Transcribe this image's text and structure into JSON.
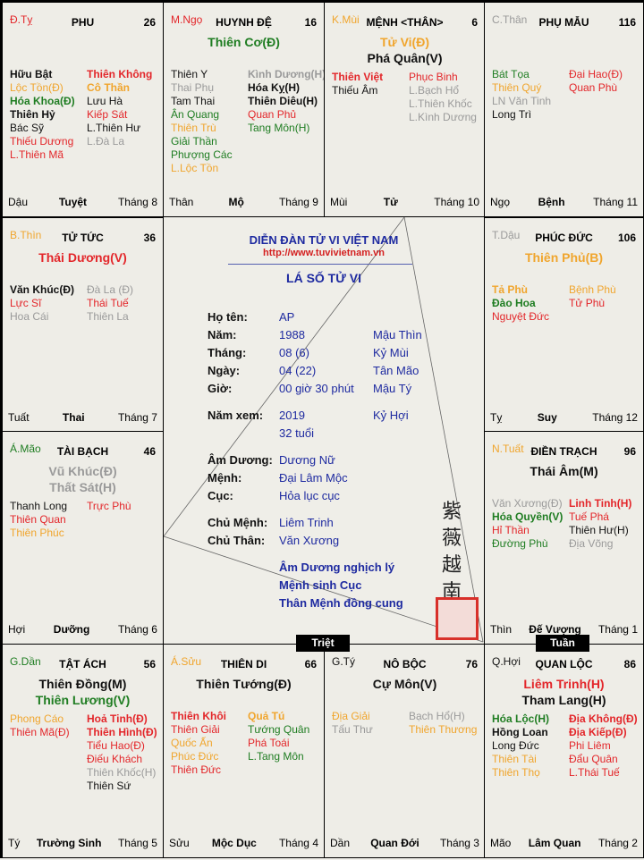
{
  "colors": {
    "red": "#e3262a",
    "orange": "#f0a52d",
    "green": "#1f7d22",
    "black": "#111111",
    "gray": "#9a9a9a",
    "blue": "#1e2aa0"
  },
  "palaces": [
    {
      "can": {
        "t": "Đ.Tỵ",
        "c": "r"
      },
      "name": "PHU",
      "num": "26",
      "mains": [],
      "left": [
        {
          "t": "Hữu Bật",
          "c": "k",
          "b": 1
        },
        {
          "t": "Lộc Tồn(Đ)",
          "c": "o"
        },
        {
          "t": "Hóa Khoa(Đ)",
          "c": "g",
          "b": 1
        },
        {
          "t": "Thiên Hỷ",
          "c": "k",
          "b": 1
        },
        {
          "t": "Bác Sỹ",
          "c": "k"
        },
        {
          "t": "Thiếu Dương",
          "c": "r"
        },
        {
          "t": "L.Thiên Mã",
          "c": "r"
        }
      ],
      "right": [
        {
          "t": "Thiên Không",
          "c": "r",
          "b": 1
        },
        {
          "t": "Cô Thần",
          "c": "o",
          "b": 1
        },
        {
          "t": "Lưu Hà",
          "c": "k"
        },
        {
          "t": "Kiếp Sát",
          "c": "r"
        },
        {
          "t": "L.Thiên Hư",
          "c": "k"
        },
        {
          "t": "L.Đà La",
          "c": "y"
        }
      ],
      "foot": [
        "Dậu",
        "Tuyệt",
        "Tháng 8"
      ]
    },
    {
      "can": {
        "t": "M.Ngọ",
        "c": "r"
      },
      "name": "HUYNH ĐỆ",
      "num": "16",
      "mains": [
        {
          "t": "Thiên Cơ(Đ)",
          "c": "g"
        }
      ],
      "left": [
        {
          "t": "Thiên Y",
          "c": "k"
        },
        {
          "t": "Thai Phụ",
          "c": "y"
        },
        {
          "t": "Tam Thai",
          "c": "k"
        },
        {
          "t": "Ân Quang",
          "c": "g"
        },
        {
          "t": "Thiên Trù",
          "c": "o"
        },
        {
          "t": "Giải Thần",
          "c": "g"
        },
        {
          "t": "Phượng Các",
          "c": "g"
        },
        {
          "t": "L.Lộc Tồn",
          "c": "o"
        }
      ],
      "right": [
        {
          "t": "Kình Dương(H)",
          "c": "y",
          "b": 1
        },
        {
          "t": "Hóa Kỵ(H)",
          "c": "k",
          "b": 1
        },
        {
          "t": "Thiên Diêu(H)",
          "c": "k",
          "b": 1
        },
        {
          "t": "Quan Phủ",
          "c": "r"
        },
        {
          "t": "Tang Môn(H)",
          "c": "g"
        }
      ],
      "foot": [
        "Thân",
        "Mộ",
        "Tháng 9"
      ]
    },
    {
      "can": {
        "t": "K.Mùi",
        "c": "o"
      },
      "name": "MỆNH <THÂN>",
      "num": "6",
      "mains": [
        {
          "t": "Tử Vi(Đ)",
          "c": "o"
        },
        {
          "t": "Phá Quân(V)",
          "c": "k"
        }
      ],
      "left": [
        {
          "t": "Thiên Việt",
          "c": "r",
          "b": 1
        },
        {
          "t": "Thiếu Âm",
          "c": "k"
        }
      ],
      "right": [
        {
          "t": "Phục Binh",
          "c": "r"
        },
        {
          "t": "L.Bạch Hổ",
          "c": "y"
        },
        {
          "t": "L.Thiên Khốc",
          "c": "y"
        },
        {
          "t": "L.Kình Dương",
          "c": "y"
        }
      ],
      "foot": [
        "Mùi",
        "Tử",
        "Tháng 10"
      ]
    },
    {
      "can": {
        "t": "C.Thân",
        "c": "y"
      },
      "name": "PHỤ MẪU",
      "num": "116",
      "mains": [],
      "left": [
        {
          "t": "Bát Tọa",
          "c": "g"
        },
        {
          "t": "Thiên Quý",
          "c": "o"
        },
        {
          "t": "LN Văn Tinh",
          "c": "y"
        },
        {
          "t": "Long Trì",
          "c": "k"
        }
      ],
      "right": [
        {
          "t": "Đại Hao(Đ)",
          "c": "r"
        },
        {
          "t": "Quan Phù",
          "c": "r"
        }
      ],
      "foot": [
        "Ngọ",
        "Bệnh",
        "Tháng 11"
      ]
    },
    {
      "can": {
        "t": "B.Thìn",
        "c": "o"
      },
      "name": "TỬ TỨC",
      "num": "36",
      "mains": [
        {
          "t": "Thái Dương(V)",
          "c": "r"
        }
      ],
      "left": [
        {
          "t": "Văn Khúc(Đ)",
          "c": "k",
          "b": 1
        },
        {
          "t": "Lực Sĩ",
          "c": "r"
        },
        {
          "t": "Hoa Cái",
          "c": "y"
        }
      ],
      "right": [
        {
          "t": "Đà La (Đ)",
          "c": "y"
        },
        {
          "t": "Thái Tuế",
          "c": "r"
        },
        {
          "t": "Thiên La",
          "c": "y"
        }
      ],
      "foot": [
        "Tuất",
        "Thai",
        "Tháng 7"
      ]
    },
    {
      "can": {
        "t": "T.Dậu",
        "c": "y"
      },
      "name": "PHÚC ĐỨC",
      "num": "106",
      "mains": [
        {
          "t": "Thiên Phủ(B)",
          "c": "o"
        }
      ],
      "left": [
        {
          "t": "Tả Phù",
          "c": "o",
          "b": 1
        },
        {
          "t": "Đào Hoa",
          "c": "g",
          "b": 1
        },
        {
          "t": "Nguyệt Đức",
          "c": "r"
        }
      ],
      "right": [
        {
          "t": "Bệnh Phù",
          "c": "o"
        },
        {
          "t": "Tử Phù",
          "c": "r"
        }
      ],
      "foot": [
        "Tỵ",
        "Suy",
        "Tháng 12"
      ]
    },
    {
      "can": {
        "t": "Á.Mão",
        "c": "g"
      },
      "name": "TÀI BẠCH",
      "num": "46",
      "mains": [
        {
          "t": "Vũ Khúc(Đ)",
          "c": "y"
        },
        {
          "t": "Thất Sát(H)",
          "c": "y"
        }
      ],
      "left": [
        {
          "t": "Thanh Long",
          "c": "k"
        },
        {
          "t": "Thiên Quan",
          "c": "r"
        },
        {
          "t": "Thiên Phúc",
          "c": "o"
        }
      ],
      "right": [
        {
          "t": "Trực Phù",
          "c": "r"
        }
      ],
      "foot": [
        "Hợi",
        "Dưỡng",
        "Tháng 6"
      ]
    },
    {
      "can": {
        "t": "N.Tuất",
        "c": "o"
      },
      "name": "ĐIỀN TRẠCH",
      "num": "96",
      "mains": [
        {
          "t": "Thái Âm(M)",
          "c": "k"
        }
      ],
      "left": [
        {
          "t": "Văn Xương(Đ)",
          "c": "y"
        },
        {
          "t": "Hóa Quyền(V)",
          "c": "g",
          "b": 1
        },
        {
          "t": "Hỉ Thần",
          "c": "r"
        },
        {
          "t": "Đường Phù",
          "c": "g"
        }
      ],
      "right": [
        {
          "t": "Linh Tinh(H)",
          "c": "r",
          "b": 1
        },
        {
          "t": "Tuế Phá",
          "c": "r"
        },
        {
          "t": "Thiên Hư(H)",
          "c": "k"
        },
        {
          "t": "Địa Võng",
          "c": "y"
        }
      ],
      "foot": [
        "Thìn",
        "Đế Vượng",
        "Tháng 1"
      ]
    },
    {
      "can": {
        "t": "G.Dần",
        "c": "g"
      },
      "name": "TẬT ÁCH",
      "num": "56",
      "mains": [
        {
          "t": "Thiên Đồng(M)",
          "c": "k"
        },
        {
          "t": "Thiên Lương(V)",
          "c": "g"
        }
      ],
      "left": [
        {
          "t": "Phong Cáo",
          "c": "o"
        },
        {
          "t": "Thiên Mã(Đ)",
          "c": "r"
        }
      ],
      "right": [
        {
          "t": "Hoả Tinh(Đ)",
          "c": "r",
          "b": 1
        },
        {
          "t": "Thiên Hình(Đ)",
          "c": "r",
          "b": 1
        },
        {
          "t": "Tiểu Hao(Đ)",
          "c": "r"
        },
        {
          "t": "Điếu Khách",
          "c": "r"
        },
        {
          "t": "Thiên Khốc(H)",
          "c": "y"
        },
        {
          "t": "Thiên Sứ",
          "c": "k"
        }
      ],
      "foot": [
        "Tý",
        "Trường Sinh",
        "Tháng 5"
      ]
    },
    {
      "can": {
        "t": "Á.Sửu",
        "c": "o"
      },
      "name": "THIÊN DI",
      "num": "66",
      "mains": [
        {
          "t": "Thiên Tướng(Đ)",
          "c": "k"
        }
      ],
      "left": [
        {
          "t": "Thiên Khôi",
          "c": "r",
          "b": 1
        },
        {
          "t": "Thiên Giải",
          "c": "r"
        },
        {
          "t": "Quốc Ấn",
          "c": "o"
        },
        {
          "t": "Phúc Đức",
          "c": "o"
        },
        {
          "t": "Thiên Đức",
          "c": "r"
        }
      ],
      "right": [
        {
          "t": "Quả Tú",
          "c": "o",
          "b": 1
        },
        {
          "t": "Tướng Quân",
          "c": "g"
        },
        {
          "t": "Phá Toái",
          "c": "r"
        },
        {
          "t": "L.Tang Môn",
          "c": "g"
        }
      ],
      "foot": [
        "Sửu",
        "Mộc Dục",
        "Tháng 4"
      ]
    },
    {
      "can": {
        "t": "G.Tý",
        "c": "k"
      },
      "name": "NÔ BỘC",
      "num": "76",
      "mains": [
        {
          "t": "Cự Môn(V)",
          "c": "k"
        }
      ],
      "left": [
        {
          "t": "Địa Giải",
          "c": "o"
        },
        {
          "t": "Tấu Thư",
          "c": "y"
        }
      ],
      "right": [
        {
          "t": "Bạch Hổ(H)",
          "c": "y"
        },
        {
          "t": "Thiên Thương",
          "c": "o"
        }
      ],
      "foot": [
        "Dần",
        "Quan Đới",
        "Tháng 3"
      ]
    },
    {
      "can": {
        "t": "Q.Hợi",
        "c": "k"
      },
      "name": "QUAN LỘC",
      "num": "86",
      "mains": [
        {
          "t": "Liêm Trinh(H)",
          "c": "r"
        },
        {
          "t": "Tham Lang(H)",
          "c": "k"
        }
      ],
      "left": [
        {
          "t": "Hóa Lộc(H)",
          "c": "g",
          "b": 1
        },
        {
          "t": "Hồng Loan",
          "c": "k",
          "b": 1
        },
        {
          "t": "Long Đức",
          "c": "k"
        },
        {
          "t": "Thiên Tài",
          "c": "o"
        },
        {
          "t": "Thiên Thọ",
          "c": "o"
        }
      ],
      "right": [
        {
          "t": "Địa Không(Đ)",
          "c": "r",
          "b": 1
        },
        {
          "t": "Địa Kiếp(Đ)",
          "c": "r",
          "b": 1
        },
        {
          "t": "Phi Liêm",
          "c": "r"
        },
        {
          "t": "Đẩu Quân",
          "c": "r"
        },
        {
          "t": "L.Thái Tuế",
          "c": "r"
        }
      ],
      "foot": [
        "Mão",
        "Lâm Quan",
        "Tháng 2"
      ]
    }
  ],
  "center": {
    "site": "DIỄN ĐÀN TỬ VI VIỆT NAM",
    "url": "http://www.tuvivietnam.vn",
    "title": "LÁ SỐ TỬ VI",
    "rows": [
      {
        "label": "Họ tên:",
        "value": "AP",
        "extra": ""
      },
      {
        "label": "Năm:",
        "value": "1988",
        "extra": "Mậu Thìn"
      },
      {
        "label": "Tháng:",
        "value": "08 (6)",
        "extra": "Kỷ Mùi"
      },
      {
        "label": "Ngày:",
        "value": "04 (22)",
        "extra": "Tân Mão"
      },
      {
        "label": "Giờ:",
        "value": "00 giờ 30 phút",
        "extra": "Mậu Tý"
      },
      {
        "label": "Năm xem:",
        "value": "2019",
        "extra": "Kỷ Hợi"
      },
      {
        "label": "",
        "value": "32 tuổi",
        "extra": ""
      },
      {
        "label": "Âm Dương:",
        "value": "Dương Nữ",
        "extra": ""
      },
      {
        "label": "Mệnh:",
        "value": "Đại Lâm Mộc",
        "extra": ""
      },
      {
        "label": "Cục:",
        "value": "Hỏa lục cục",
        "extra": ""
      },
      {
        "label": "Chủ Mệnh:",
        "value": "Liêm Trinh",
        "extra": ""
      },
      {
        "label": "Chủ Thân:",
        "value": "Văn Xương",
        "extra": ""
      }
    ],
    "notes": [
      "Âm Dương nghịch lý",
      "Mệnh sinh Cục",
      "Thân Mệnh đồng cung"
    ],
    "seal_text": "紫薇越南"
  },
  "markers": {
    "triet": "Triệt",
    "tuan": "Tuần"
  }
}
